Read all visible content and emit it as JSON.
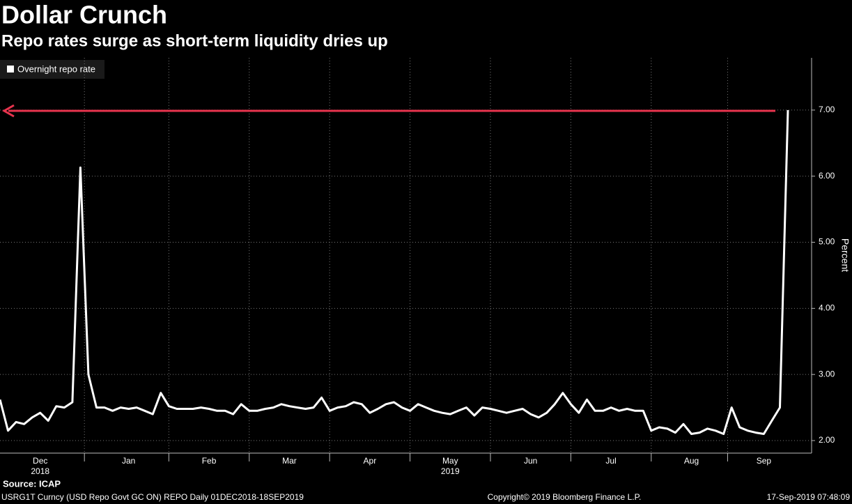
{
  "chart_data": {
    "type": "line",
    "title": "Dollar Crunch",
    "subtitle": "Repo rates surge as short-term liquidity dries up",
    "y_label": "Percent",
    "source": "Source: ICAP",
    "footer_left": "USRG1T Curncy (USD Repo Govt GC ON) REPO  Daily 01DEC2018-18SEP2019",
    "footer_center": "Copyright© 2019 Bloomberg Finance L.P.",
    "footer_right": "17-Sep-2019 07:48:09",
    "year_labels": [
      "2018",
      "2019"
    ],
    "categories": [
      null,
      null,
      null,
      null,
      null,
      "Dec",
      null,
      null,
      null,
      null,
      null,
      null,
      null,
      null,
      null,
      null,
      "Jan",
      null,
      null,
      null,
      null,
      null,
      null,
      null,
      null,
      null,
      "Feb",
      null,
      null,
      null,
      null,
      null,
      null,
      null,
      null,
      null,
      "Mar",
      null,
      null,
      null,
      null,
      null,
      null,
      null,
      null,
      null,
      "Apr",
      null,
      null,
      null,
      null,
      null,
      null,
      null,
      null,
      null,
      "May",
      null,
      null,
      null,
      null,
      null,
      null,
      null,
      null,
      null,
      "Jun",
      null,
      null,
      null,
      null,
      null,
      null,
      null,
      null,
      null,
      "Jul",
      null,
      null,
      null,
      null,
      null,
      null,
      null,
      null,
      null,
      "Aug",
      null,
      null,
      null,
      null,
      null,
      null,
      null,
      null,
      "Sep",
      null,
      null,
      null
    ],
    "series": [
      {
        "name": "Overnight repo rate",
        "color": "#ffffff",
        "values": [
          2.62,
          2.15,
          2.28,
          2.25,
          2.35,
          2.42,
          2.3,
          2.52,
          2.5,
          2.58,
          6.13,
          3.0,
          2.5,
          2.5,
          2.45,
          2.5,
          2.48,
          2.5,
          2.45,
          2.4,
          2.72,
          2.52,
          2.48,
          2.48,
          2.48,
          2.5,
          2.48,
          2.45,
          2.45,
          2.4,
          2.55,
          2.45,
          2.45,
          2.48,
          2.5,
          2.55,
          2.52,
          2.5,
          2.48,
          2.5,
          2.65,
          2.45,
          2.5,
          2.52,
          2.58,
          2.55,
          2.42,
          2.48,
          2.55,
          2.58,
          2.5,
          2.45,
          2.55,
          2.5,
          2.45,
          2.42,
          2.4,
          2.45,
          2.5,
          2.38,
          2.5,
          2.48,
          2.45,
          2.42,
          2.45,
          2.48,
          2.4,
          2.35,
          2.42,
          2.55,
          2.72,
          2.55,
          2.42,
          2.62,
          2.45,
          2.45,
          2.5,
          2.45,
          2.48,
          2.45,
          2.45,
          2.15,
          2.2,
          2.18,
          2.12,
          2.25,
          2.1,
          2.12,
          2.18,
          2.15,
          2.1,
          2.5,
          2.2,
          2.15,
          2.12,
          2.1,
          2.3,
          2.5,
          7.0
        ]
      }
    ],
    "ylim": [
      1.81,
      7.79
    ],
    "yticks": [
      {
        "value": 2,
        "label": "2.00"
      },
      {
        "value": 3,
        "label": "3.00"
      },
      {
        "value": 4,
        "label": "4.00"
      },
      {
        "value": 5,
        "label": "5.00"
      },
      {
        "value": 6,
        "label": "6.00"
      },
      {
        "value": 7,
        "label": "7.00"
      }
    ],
    "grid": true,
    "legend": "upper left"
  }
}
